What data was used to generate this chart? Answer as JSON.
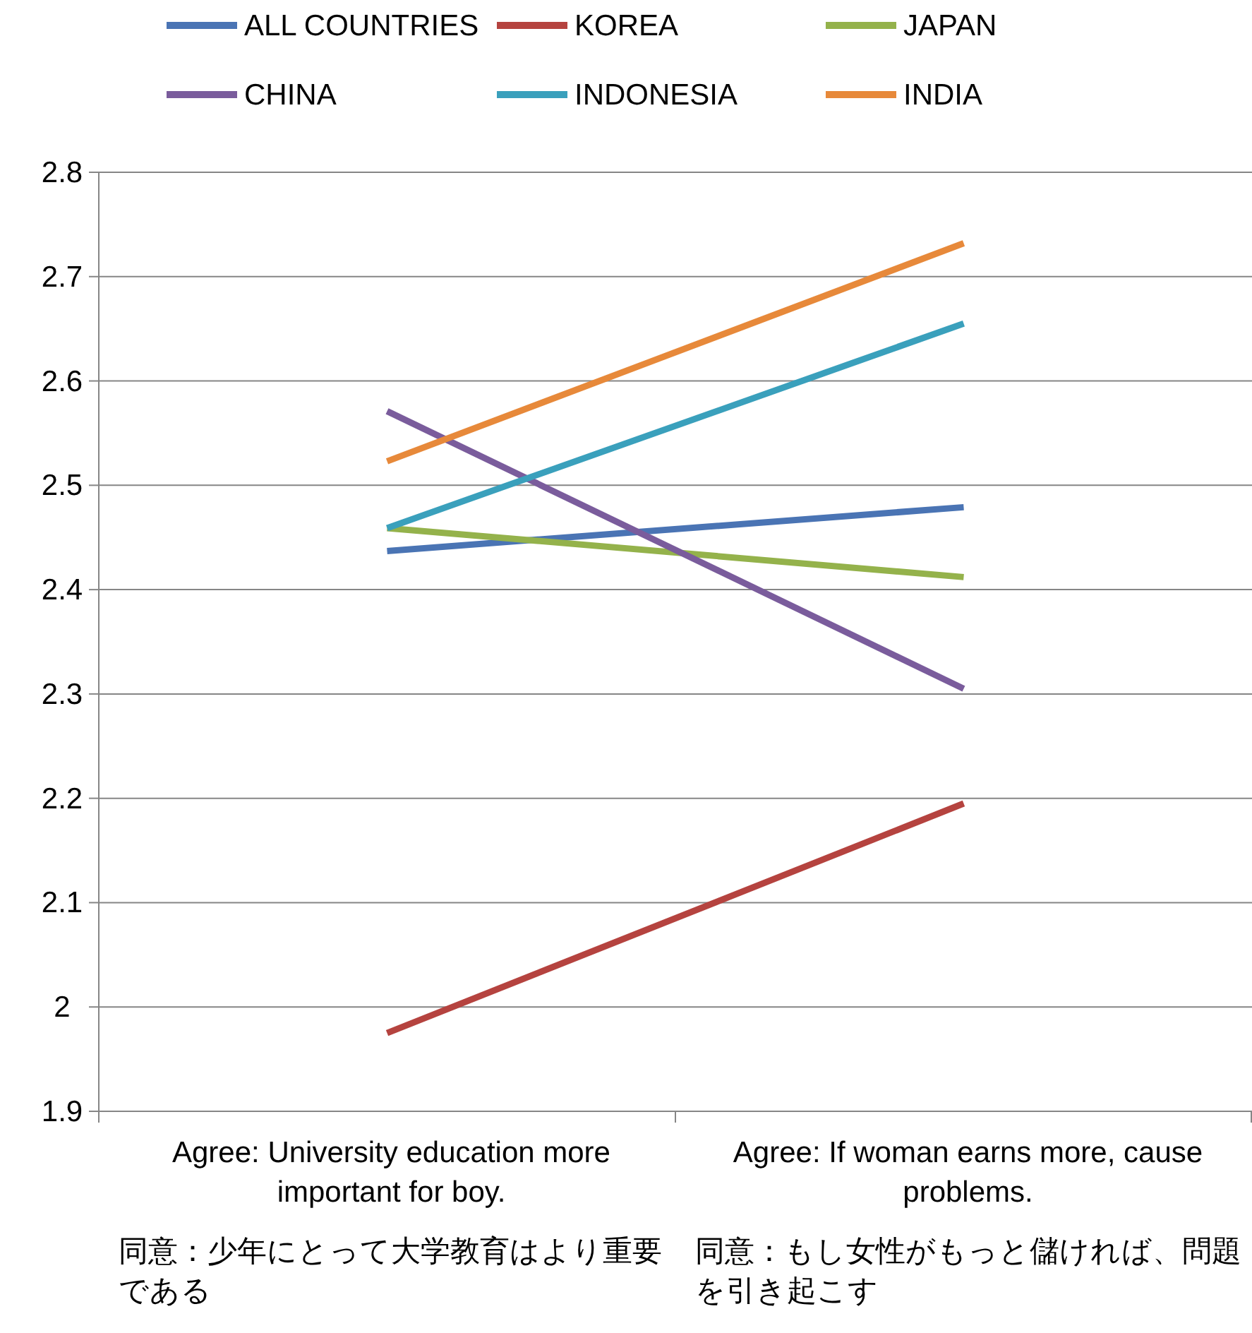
{
  "chart_data": {
    "type": "line",
    "categories": [
      "Agree: University education more important for boy.\n同意：少年にとって大学教育はより重要である",
      "Agree: If woman earns more, cause problems.\n同意：もし女性がもっと儲ければ、問題を引き起こす"
    ],
    "series": [
      {
        "name": "ALL COUNTRIES",
        "color": "#4a74b4",
        "values": [
          2.437,
          2.479
        ]
      },
      {
        "name": "KOREA",
        "color": "#b5433f",
        "values": [
          1.975,
          2.195
        ]
      },
      {
        "name": "JAPAN",
        "color": "#94b24b",
        "values": [
          2.459,
          2.412
        ]
      },
      {
        "name": "CHINA",
        "color": "#7a5c9c",
        "values": [
          2.571,
          2.305
        ]
      },
      {
        "name": "INDONESIA",
        "color": "#3aa0bc",
        "values": [
          2.459,
          2.655
        ]
      },
      {
        "name": "INDIA",
        "color": "#e7893a",
        "values": [
          2.523,
          2.732
        ]
      }
    ],
    "ylim": [
      1.9,
      2.8
    ],
    "yticks": [
      1.9,
      2,
      2.1,
      2.2,
      2.3,
      2.4,
      2.5,
      2.6,
      2.7,
      2.8
    ],
    "grid": "y",
    "legend": "top"
  }
}
